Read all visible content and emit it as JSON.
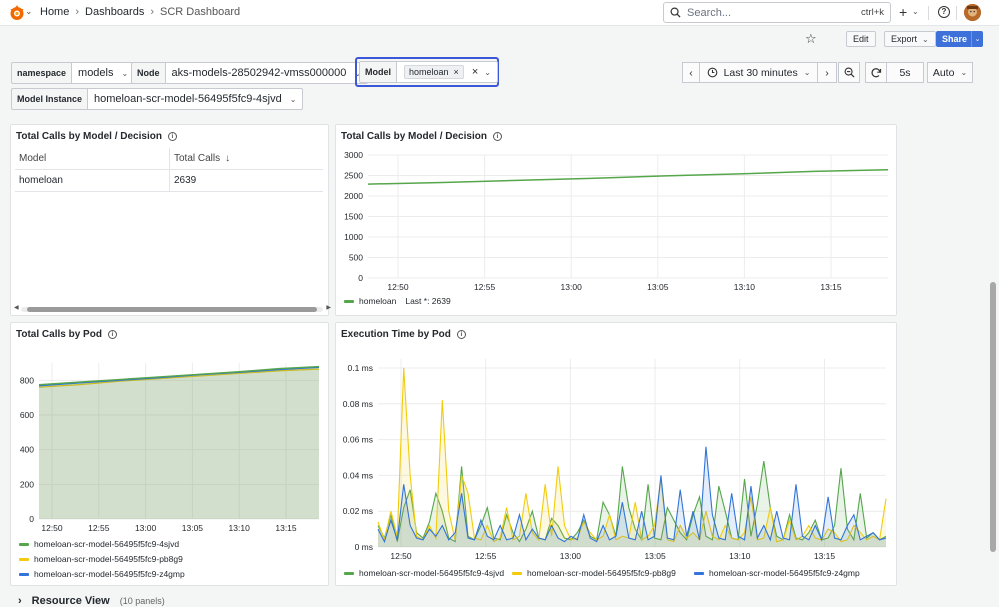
{
  "breadcrumb": {
    "home": "Home",
    "dashboards": "Dashboards",
    "current": "SCR Dashboard"
  },
  "search": {
    "placeholder": "Search...",
    "shortcut": "ctrl+k"
  },
  "toolbar": {
    "edit": "Edit",
    "export": "Export",
    "share": "Share"
  },
  "variables": {
    "namespace": {
      "label": "namespace",
      "value": "models"
    },
    "node": {
      "label": "Node",
      "value": "aks-models-28502942-vmss000000"
    },
    "model": {
      "label": "Model",
      "value": "homeloan"
    },
    "model_instance": {
      "label": "Model Instance",
      "value": "homeloan-scr-model-56495f5fc9-4sjvd"
    }
  },
  "time": {
    "range": "Last 30 minutes",
    "refresh": "5s",
    "auto": "Auto"
  },
  "panels": {
    "table": {
      "title": "Total Calls by Model / Decision",
      "columns": [
        "Model",
        "Total Calls"
      ],
      "rows": [
        [
          "homeloan",
          "2639"
        ]
      ]
    },
    "calls_chart": {
      "title": "Total Calls by Model / Decision",
      "legend": "homeloan",
      "legend_stat": "Last *: 2639"
    },
    "pods_chart": {
      "title": "Total Calls by Pod"
    },
    "exec_chart": {
      "title": "Execution Time by Pod"
    }
  },
  "collapsed_row": {
    "title": "Resource View",
    "subtitle": "(10 panels)"
  },
  "colors": {
    "green": "#56a64b",
    "yellow": "#f2cc0c",
    "blue": "#3274d9",
    "accent": "#3d71d9"
  },
  "chart_data": [
    {
      "type": "line",
      "title": "Total Calls by Model / Decision",
      "x": [
        "12:46",
        "12:50",
        "12:55",
        "13:00",
        "13:05",
        "13:10",
        "13:15",
        "13:17"
      ],
      "xticks": [
        "12:50",
        "12:55",
        "13:00",
        "13:05",
        "13:10",
        "13:15"
      ],
      "yticks": [
        "0",
        "500",
        "1000",
        "1500",
        "2000",
        "2500",
        "3000"
      ],
      "ylim": [
        0,
        3000
      ],
      "series": [
        {
          "name": "homeloan",
          "values": [
            2290,
            2330,
            2380,
            2430,
            2490,
            2540,
            2600,
            2639
          ]
        }
      ]
    },
    {
      "type": "area",
      "title": "Total Calls by Pod",
      "x": [
        "12:46",
        "12:50",
        "12:55",
        "13:00",
        "13:05",
        "13:10",
        "13:15",
        "13:17"
      ],
      "xticks": [
        "12:50",
        "12:55",
        "13:00",
        "13:05",
        "13:10",
        "13:15"
      ],
      "yticks": [
        "0",
        "200",
        "400",
        "600",
        "800"
      ],
      "ylim": [
        0,
        900
      ],
      "series": [
        {
          "name": "homeloan-scr-model-56495f5fc9-4sjvd",
          "values": [
            775,
            790,
            805,
            820,
            835,
            850,
            868,
            880
          ]
        },
        {
          "name": "homeloan-scr-model-56495f5fc9-pb8g9",
          "values": [
            760,
            775,
            795,
            810,
            825,
            840,
            855,
            865
          ]
        },
        {
          "name": "homeloan-scr-model-56495f5fc9-z4gmp",
          "values": [
            768,
            785,
            800,
            815,
            832,
            846,
            862,
            875
          ]
        }
      ]
    },
    {
      "type": "area",
      "title": "Execution Time by Pod",
      "xticks": [
        "12:50",
        "12:55",
        "13:00",
        "13:05",
        "13:10",
        "13:15"
      ],
      "yticks": [
        "0 ms",
        "0.02 ms",
        "0.04 ms",
        "0.06 ms",
        "0.08 ms",
        "0.1 ms"
      ],
      "ylim": [
        0,
        0.105
      ],
      "series": [
        {
          "name": "homeloan-scr-model-56495f5fc9-4sjvd",
          "values": [
            0.012,
            0.005,
            0.018,
            0.003,
            0.022,
            0.032,
            0.008,
            0.005,
            0.014,
            0.03,
            0.02,
            0.005,
            0.003,
            0.045,
            0.006,
            0.004,
            0.012,
            0.022,
            0.005,
            0.004,
            0.018,
            0.008,
            0.003,
            0.01,
            0.02,
            0.005,
            0.004,
            0.016,
            0.012,
            0.005,
            0.004,
            0.008,
            0.015,
            0.006,
            0.004,
            0.025,
            0.018,
            0.006,
            0.045,
            0.022,
            0.01,
            0.004,
            0.035,
            0.005,
            0.004,
            0.022,
            0.015,
            0.008,
            0.004,
            0.018,
            0.028,
            0.006,
            0.004,
            0.034,
            0.02,
            0.005,
            0.004,
            0.038,
            0.006,
            0.024,
            0.048,
            0.022,
            0.006,
            0.004,
            0.018,
            0.005,
            0.004,
            0.008,
            0.015,
            0.004,
            0.005,
            0.012,
            0.044,
            0.01,
            0.004,
            0.03,
            0.005,
            0.008,
            0.004,
            0.006
          ]
        },
        {
          "name": "homeloan-scr-model-56495f5fc9-pb8g9",
          "values": [
            0.014,
            0.004,
            0.02,
            0.006,
            0.1,
            0.04,
            0.006,
            0.004,
            0.012,
            0.005,
            0.082,
            0.02,
            0.004,
            0.04,
            0.03,
            0.005,
            0.004,
            0.012,
            0.003,
            0.005,
            0.022,
            0.004,
            0.006,
            0.03,
            0.008,
            0.004,
            0.035,
            0.006,
            0.045,
            0.012,
            0.004,
            0.005,
            0.014,
            0.008,
            0.004,
            0.006,
            0.018,
            0.004,
            0.006,
            0.005,
            0.025,
            0.004,
            0.006,
            0.012,
            0.038,
            0.004,
            0.003,
            0.012,
            0.005,
            0.008,
            0.004,
            0.02,
            0.006,
            0.004,
            0.012,
            0.005,
            0.004,
            0.008,
            0.028,
            0.004,
            0.005,
            0.022,
            0.003,
            0.004,
            0.015,
            0.004,
            0.006,
            0.012,
            0.005,
            0.004,
            0.01,
            0.008,
            0.003,
            0.004,
            0.012,
            0.008,
            0.004,
            0.006,
            0.004,
            0.027
          ]
        },
        {
          "name": "homeloan-scr-model-56495f5fc9-z4gmp",
          "values": [
            0.01,
            0.003,
            0.015,
            0.004,
            0.035,
            0.012,
            0.005,
            0.004,
            0.01,
            0.006,
            0.012,
            0.004,
            0.008,
            0.03,
            0.005,
            0.004,
            0.015,
            0.006,
            0.004,
            0.012,
            0.004,
            0.005,
            0.018,
            0.004,
            0.01,
            0.005,
            0.004,
            0.012,
            0.005,
            0.003,
            0.006,
            0.004,
            0.018,
            0.005,
            0.003,
            0.012,
            0.004,
            0.006,
            0.025,
            0.005,
            0.004,
            0.02,
            0.004,
            0.006,
            0.04,
            0.005,
            0.004,
            0.032,
            0.006,
            0.02,
            0.004,
            0.056,
            0.018,
            0.005,
            0.004,
            0.03,
            0.006,
            0.004,
            0.034,
            0.005,
            0.012,
            0.004,
            0.02,
            0.005,
            0.004,
            0.035,
            0.006,
            0.004,
            0.012,
            0.004,
            0.028,
            0.005,
            0.004,
            0.012,
            0.018,
            0.004,
            0.006,
            0.008,
            0.004,
            0.005
          ]
        }
      ]
    }
  ]
}
